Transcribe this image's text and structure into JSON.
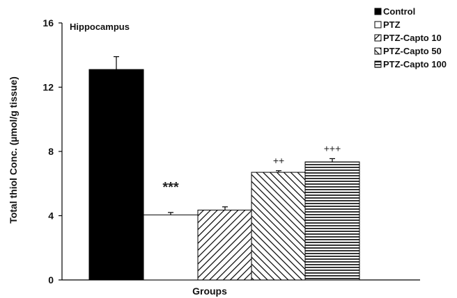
{
  "chart_data": {
    "type": "bar",
    "panel_label": "Hippocampus",
    "xlabel": "Groups",
    "ylabel": "Total thiol Conc. (µmol/g tissue)",
    "ylim": [
      0,
      16
    ],
    "yticks": [
      0,
      4,
      8,
      12,
      16
    ],
    "grid": false,
    "legend_position": "top-right",
    "categories": [
      "Control",
      "PTZ",
      "PTZ-Capto 10",
      "PTZ-Capto 50",
      "PTZ-Capto 100"
    ],
    "values": [
      13.1,
      4.05,
      4.35,
      6.7,
      7.35
    ],
    "errors": [
      0.8,
      0.15,
      0.2,
      0.1,
      0.2
    ],
    "significance": [
      "",
      "***",
      "",
      "++",
      "+++"
    ],
    "fills": [
      "solid-black",
      "white",
      "diagonal-up",
      "diagonal-down",
      "horizontal"
    ],
    "bar_color": "#000000"
  }
}
